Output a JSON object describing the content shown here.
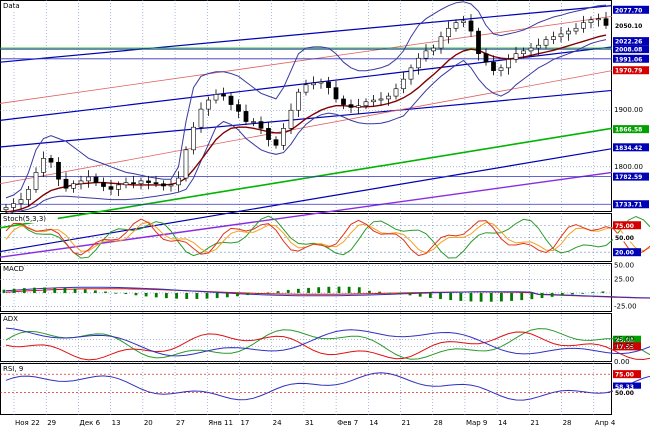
{
  "colors": {
    "bg": "#ffffff",
    "grid": "#6e8fbf",
    "panelBorder": "#000000",
    "candleUp": "#ffffff",
    "candleDown": "#000000",
    "bollinger": "#3a3aa0",
    "sma": "#800000",
    "channelBlue": "#0000b4",
    "channelRed": "#e06060",
    "trendGreen": "#00b400",
    "trendPurple": "#8a2be2",
    "hline": "#3030c0",
    "stochK": "#e0341c",
    "stochD": "#f4a020",
    "stochSlow": "#2a9a2a",
    "macdLine": "#3030c0",
    "macdSignal": "#e01010",
    "macdHist": "#007a00",
    "adx": "#3030c0",
    "plusDI": "#2a9a2a",
    "minusDI": "#e01010",
    "rsi": "#3030c0",
    "tagBlue": "#0000b4",
    "tagRed": "#d40000",
    "tagGreen": "#00a000"
  },
  "panels": [
    {
      "label": "Data"
    },
    {
      "label": "Stoch(5,3,3)"
    },
    {
      "label": "MACD"
    },
    {
      "label": "ADX"
    },
    {
      "label": "RSI, 9"
    }
  ],
  "chart_data": {
    "type": "candlestick",
    "x_labels": [
      "Ноя 22",
      "29",
      "Дек 6",
      "13",
      "20",
      "27",
      "Янв 11",
      "17",
      "24",
      "31",
      "Фев 7",
      "14",
      "21",
      "28",
      "Мар 9",
      "14",
      "21",
      "28",
      "Апр 4"
    ],
    "price": {
      "ylim": [
        1720,
        2095
      ],
      "tick_labels": [
        "1900.00",
        "1800.00"
      ],
      "tick_values": [
        1900,
        1800
      ],
      "tags": [
        {
          "text": "2077.70",
          "value": 2077.7,
          "color": "tagBlue"
        },
        {
          "text": "2050.10",
          "value": 2050.1,
          "color": "plain"
        },
        {
          "text": "2022.26",
          "value": 2022.26,
          "color": "tagBlue"
        },
        {
          "text": "2008.08",
          "value": 2008.08,
          "color": "tagBlue"
        },
        {
          "text": "1991.06",
          "value": 1991.06,
          "color": "tagBlue"
        },
        {
          "text": "1970.79",
          "value": 1970.79,
          "color": "tagRed"
        },
        {
          "text": "1866.58",
          "value": 1866.58,
          "color": "tagGreen"
        },
        {
          "text": "1834.42",
          "value": 1834.42,
          "color": "tagBlue"
        },
        {
          "text": "1782.59",
          "value": 1782.59,
          "color": "tagBlue"
        },
        {
          "text": "1733.71",
          "value": 1733.71,
          "color": "tagBlue"
        }
      ],
      "close": [
        1728,
        1735,
        1742,
        1760,
        1790,
        1815,
        1808,
        1778,
        1762,
        1770,
        1775,
        1782,
        1772,
        1765,
        1760,
        1768,
        1772,
        1770,
        1775,
        1772,
        1770,
        1766,
        1768,
        1780,
        1830,
        1870,
        1902,
        1918,
        1928,
        1925,
        1910,
        1898,
        1880,
        1880,
        1868,
        1848,
        1838,
        1868,
        1900,
        1932,
        1945,
        1948,
        1950,
        1940,
        1920,
        1910,
        1905,
        1908,
        1915,
        1918,
        1920,
        1925,
        1938,
        1955,
        1975,
        1992,
        2005,
        2010,
        2030,
        2045,
        2055,
        2058,
        2040,
        2000,
        1985,
        1970,
        1975,
        1990,
        2000,
        2005,
        2010,
        2015,
        2025,
        2030,
        2035,
        2040,
        2045,
        2055,
        2060,
        2062,
        2050
      ],
      "bb_upper": [
        1745,
        1750,
        1760,
        1790,
        1830,
        1850,
        1855,
        1850,
        1845,
        1835,
        1825,
        1815,
        1810,
        1805,
        1800,
        1795,
        1790,
        1788,
        1785,
        1782,
        1780,
        1778,
        1778,
        1800,
        1880,
        1940,
        1960,
        1965,
        1968,
        1968,
        1965,
        1960,
        1950,
        1940,
        1930,
        1925,
        1920,
        1940,
        1970,
        2000,
        2010,
        2012,
        2012,
        2010,
        2000,
        1985,
        1975,
        1970,
        1970,
        1972,
        1975,
        1980,
        1990,
        2005,
        2030,
        2050,
        2062,
        2070,
        2078,
        2085,
        2090,
        2092,
        2088,
        2075,
        2050,
        2035,
        2032,
        2035,
        2038,
        2042,
        2048,
        2055,
        2060,
        2065,
        2068,
        2072,
        2075,
        2078,
        2082,
        2085,
        2086
      ],
      "bb_lower": [
        1715,
        1720,
        1722,
        1725,
        1730,
        1740,
        1745,
        1748,
        1748,
        1747,
        1746,
        1745,
        1744,
        1743,
        1742,
        1742,
        1742,
        1743,
        1744,
        1746,
        1748,
        1750,
        1752,
        1755,
        1760,
        1780,
        1810,
        1840,
        1870,
        1880,
        1875,
        1865,
        1850,
        1840,
        1830,
        1825,
        1822,
        1825,
        1840,
        1860,
        1875,
        1885,
        1892,
        1895,
        1893,
        1888,
        1882,
        1878,
        1876,
        1876,
        1877,
        1880,
        1885,
        1890,
        1905,
        1920,
        1935,
        1948,
        1960,
        1970,
        1980,
        1988,
        1975,
        1955,
        1940,
        1930,
        1925,
        1932,
        1945,
        1955,
        1965,
        1975,
        1982,
        1990,
        1995,
        2000,
        2005,
        2012,
        2018,
        2022,
        2025
      ],
      "sma": [
        1720,
        1722,
        1725,
        1730,
        1740,
        1750,
        1758,
        1762,
        1765,
        1768,
        1770,
        1771,
        1772,
        1772,
        1771,
        1770,
        1769,
        1768,
        1768,
        1768,
        1768,
        1768,
        1769,
        1772,
        1780,
        1795,
        1812,
        1830,
        1848,
        1860,
        1868,
        1870,
        1870,
        1868,
        1865,
        1862,
        1860,
        1860,
        1865,
        1875,
        1885,
        1893,
        1900,
        1905,
        1908,
        1908,
        1907,
        1906,
        1906,
        1907,
        1909,
        1912,
        1916,
        1922,
        1930,
        1940,
        1952,
        1963,
        1975,
        1988,
        1998,
        2005,
        2008,
        2006,
        2000,
        1995,
        1992,
        1991,
        1992,
        1994,
        1997,
        2000,
        2003,
        2006,
        2010,
        2014,
        2018,
        2022,
        2026,
        2030,
        2033
      ]
    },
    "stoch": {
      "ylim": [
        0,
        100
      ],
      "tag_values": [
        "75.00",
        "50.00",
        "20.00"
      ],
      "tag_nums": [
        75,
        50,
        20
      ]
    },
    "macd": {
      "ylim": [
        -35,
        55
      ],
      "tick_labels": [
        "50.00",
        "25.00",
        "-25.00"
      ],
      "tick_values": [
        50,
        25,
        -25
      ]
    },
    "adx": {
      "ylim": [
        0,
        55
      ],
      "tick_labels": [
        "25.00",
        "17.55",
        "0.00"
      ],
      "tick_values": [
        25,
        17.55,
        0
      ],
      "tag_values": [
        "25.00",
        "17.55"
      ]
    },
    "rsi": {
      "ylim": [
        20,
        90
      ],
      "tag_values": [
        "75.00",
        "58.33",
        "50.00"
      ],
      "tag_nums": [
        75,
        58.33,
        50
      ]
    }
  }
}
